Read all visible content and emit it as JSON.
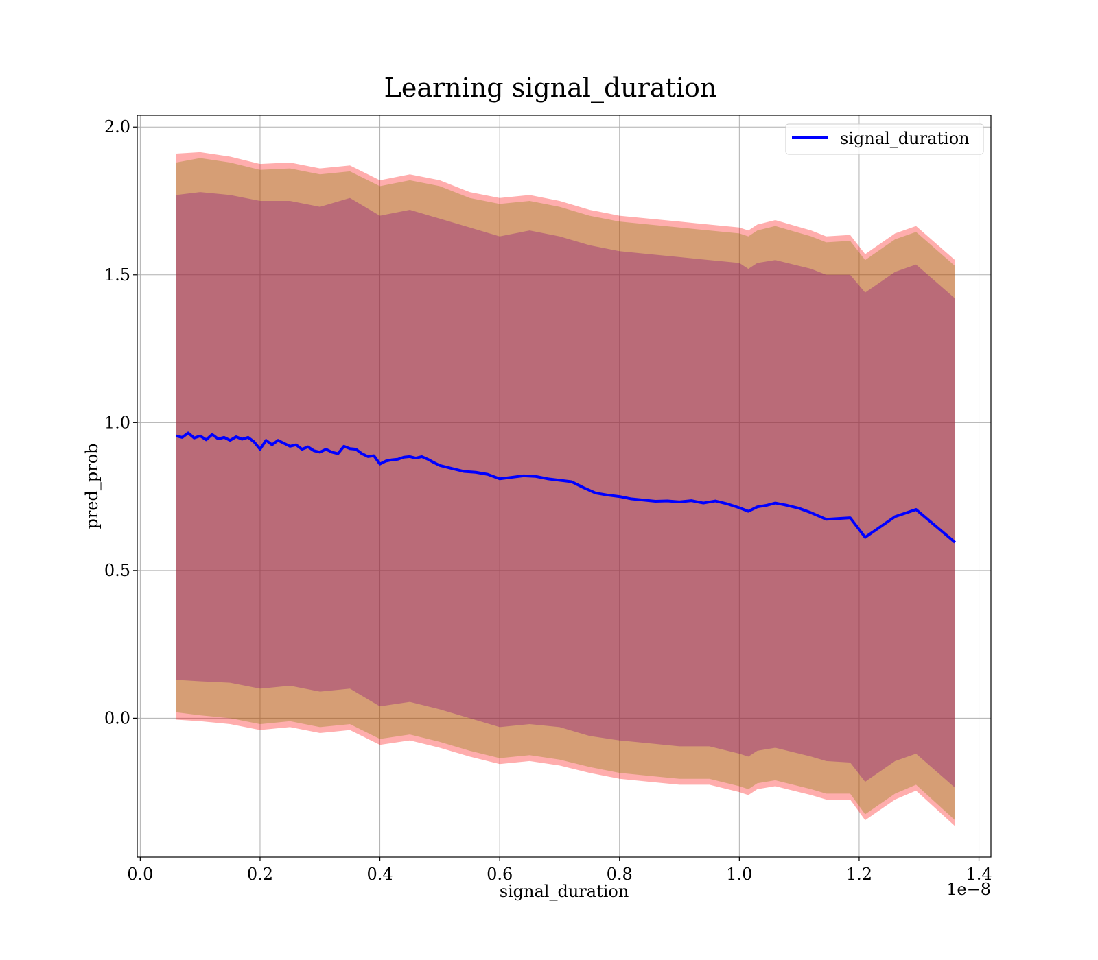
{
  "chart_data": {
    "type": "line",
    "title": "Learning signal_duration",
    "xlabel": "signal_duration",
    "ylabel": "pred_prob",
    "x_offset_text": "1e−8",
    "xlim": [
      -0.005,
      1.42
    ],
    "ylim": [
      -0.47,
      2.04
    ],
    "x_ticks": [
      0.0,
      0.2,
      0.4,
      0.6,
      0.8,
      1.0,
      1.2,
      1.4
    ],
    "x_tick_labels": [
      "0.0",
      "0.2",
      "0.4",
      "0.6",
      "0.8",
      "1.0",
      "1.2",
      "1.4"
    ],
    "y_ticks": [
      0.0,
      0.5,
      1.0,
      1.5,
      2.0
    ],
    "y_tick_labels": [
      "0.0",
      "0.5",
      "1.0",
      "1.5",
      "2.0"
    ],
    "grid": true,
    "legend": {
      "position": "top-right",
      "entries": [
        "signal_duration"
      ]
    },
    "colors": {
      "line": "#0000ff",
      "band_outer": "#ff0000",
      "band_middle": "#808000",
      "band_inner": "#800080"
    },
    "series": [
      {
        "name": "signal_duration",
        "x": [
          0.06,
          0.07,
          0.08,
          0.09,
          0.1,
          0.11,
          0.12,
          0.13,
          0.14,
          0.15,
          0.16,
          0.17,
          0.18,
          0.19,
          0.2,
          0.21,
          0.22,
          0.23,
          0.24,
          0.25,
          0.26,
          0.27,
          0.28,
          0.29,
          0.3,
          0.31,
          0.32,
          0.33,
          0.34,
          0.35,
          0.36,
          0.37,
          0.38,
          0.39,
          0.4,
          0.41,
          0.42,
          0.43,
          0.44,
          0.45,
          0.46,
          0.47,
          0.48,
          0.49,
          0.5,
          0.52,
          0.54,
          0.56,
          0.58,
          0.6,
          0.62,
          0.64,
          0.66,
          0.68,
          0.7,
          0.72,
          0.74,
          0.76,
          0.78,
          0.8,
          0.82,
          0.84,
          0.86,
          0.88,
          0.9,
          0.92,
          0.94,
          0.96,
          0.98,
          1.0,
          1.015,
          1.03,
          1.045,
          1.06,
          1.08,
          1.1,
          1.12,
          1.145,
          1.185,
          1.21,
          1.26,
          1.295,
          1.36
        ],
        "y": [
          0.955,
          0.95,
          0.965,
          0.948,
          0.955,
          0.942,
          0.96,
          0.945,
          0.95,
          0.94,
          0.952,
          0.944,
          0.95,
          0.935,
          0.91,
          0.94,
          0.925,
          0.94,
          0.93,
          0.92,
          0.925,
          0.91,
          0.918,
          0.905,
          0.9,
          0.91,
          0.9,
          0.895,
          0.92,
          0.912,
          0.91,
          0.895,
          0.885,
          0.888,
          0.86,
          0.87,
          0.874,
          0.876,
          0.883,
          0.885,
          0.88,
          0.885,
          0.876,
          0.865,
          0.855,
          0.845,
          0.835,
          0.832,
          0.825,
          0.81,
          0.815,
          0.82,
          0.818,
          0.81,
          0.805,
          0.8,
          0.78,
          0.762,
          0.755,
          0.75,
          0.742,
          0.738,
          0.734,
          0.735,
          0.732,
          0.736,
          0.728,
          0.735,
          0.725,
          0.712,
          0.7,
          0.715,
          0.72,
          0.728,
          0.72,
          0.71,
          0.695,
          0.673,
          0.678,
          0.612,
          0.682,
          0.706,
          0.595
        ]
      }
    ],
    "bands": [
      {
        "color": "outer",
        "x": [
          0.06,
          0.1,
          0.15,
          0.2,
          0.25,
          0.3,
          0.35,
          0.4,
          0.45,
          0.5,
          0.55,
          0.6,
          0.65,
          0.7,
          0.75,
          0.8,
          0.85,
          0.9,
          0.95,
          1.0,
          1.015,
          1.03,
          1.06,
          1.12,
          1.145,
          1.185,
          1.21,
          1.26,
          1.295,
          1.36
        ],
        "upper": [
          1.91,
          1.915,
          1.9,
          1.875,
          1.88,
          1.86,
          1.87,
          1.82,
          1.84,
          1.82,
          1.78,
          1.76,
          1.77,
          1.75,
          1.72,
          1.7,
          1.69,
          1.68,
          1.67,
          1.66,
          1.65,
          1.67,
          1.685,
          1.65,
          1.63,
          1.635,
          1.57,
          1.64,
          1.665,
          1.55
        ],
        "lower": [
          -0.005,
          -0.01,
          -0.02,
          -0.04,
          -0.03,
          -0.05,
          -0.04,
          -0.09,
          -0.075,
          -0.1,
          -0.13,
          -0.155,
          -0.145,
          -0.16,
          -0.185,
          -0.205,
          -0.215,
          -0.225,
          -0.225,
          -0.25,
          -0.26,
          -0.24,
          -0.23,
          -0.26,
          -0.275,
          -0.275,
          -0.345,
          -0.275,
          -0.245,
          -0.365
        ]
      },
      {
        "color": "middle",
        "x": [
          0.06,
          0.1,
          0.15,
          0.2,
          0.25,
          0.3,
          0.35,
          0.4,
          0.45,
          0.5,
          0.55,
          0.6,
          0.65,
          0.7,
          0.75,
          0.8,
          0.85,
          0.9,
          0.95,
          1.0,
          1.015,
          1.03,
          1.06,
          1.12,
          1.145,
          1.185,
          1.21,
          1.26,
          1.295,
          1.36
        ],
        "upper": [
          1.88,
          1.895,
          1.88,
          1.855,
          1.86,
          1.84,
          1.85,
          1.8,
          1.82,
          1.8,
          1.76,
          1.74,
          1.75,
          1.73,
          1.7,
          1.68,
          1.67,
          1.66,
          1.65,
          1.64,
          1.63,
          1.65,
          1.665,
          1.63,
          1.61,
          1.615,
          1.55,
          1.62,
          1.645,
          1.53
        ],
        "lower": [
          0.02,
          0.01,
          0.0,
          -0.02,
          -0.01,
          -0.03,
          -0.02,
          -0.07,
          -0.055,
          -0.08,
          -0.11,
          -0.135,
          -0.125,
          -0.14,
          -0.165,
          -0.185,
          -0.195,
          -0.205,
          -0.205,
          -0.23,
          -0.24,
          -0.22,
          -0.21,
          -0.24,
          -0.255,
          -0.255,
          -0.325,
          -0.255,
          -0.225,
          -0.345
        ]
      },
      {
        "color": "inner",
        "x": [
          0.06,
          0.1,
          0.15,
          0.2,
          0.25,
          0.3,
          0.35,
          0.4,
          0.45,
          0.5,
          0.55,
          0.6,
          0.65,
          0.7,
          0.75,
          0.8,
          0.85,
          0.9,
          0.95,
          1.0,
          1.015,
          1.03,
          1.06,
          1.12,
          1.145,
          1.185,
          1.21,
          1.26,
          1.295,
          1.36
        ],
        "upper": [
          1.77,
          1.78,
          1.77,
          1.75,
          1.75,
          1.73,
          1.76,
          1.7,
          1.72,
          1.69,
          1.66,
          1.63,
          1.65,
          1.63,
          1.6,
          1.58,
          1.57,
          1.56,
          1.55,
          1.54,
          1.52,
          1.54,
          1.55,
          1.52,
          1.5,
          1.5,
          1.44,
          1.51,
          1.535,
          1.42
        ],
        "lower": [
          0.13,
          0.125,
          0.12,
          0.1,
          0.11,
          0.09,
          0.1,
          0.04,
          0.055,
          0.03,
          0.0,
          -0.03,
          -0.02,
          -0.03,
          -0.06,
          -0.075,
          -0.085,
          -0.095,
          -0.095,
          -0.12,
          -0.13,
          -0.11,
          -0.1,
          -0.13,
          -0.145,
          -0.15,
          -0.215,
          -0.145,
          -0.12,
          -0.235
        ]
      }
    ]
  }
}
